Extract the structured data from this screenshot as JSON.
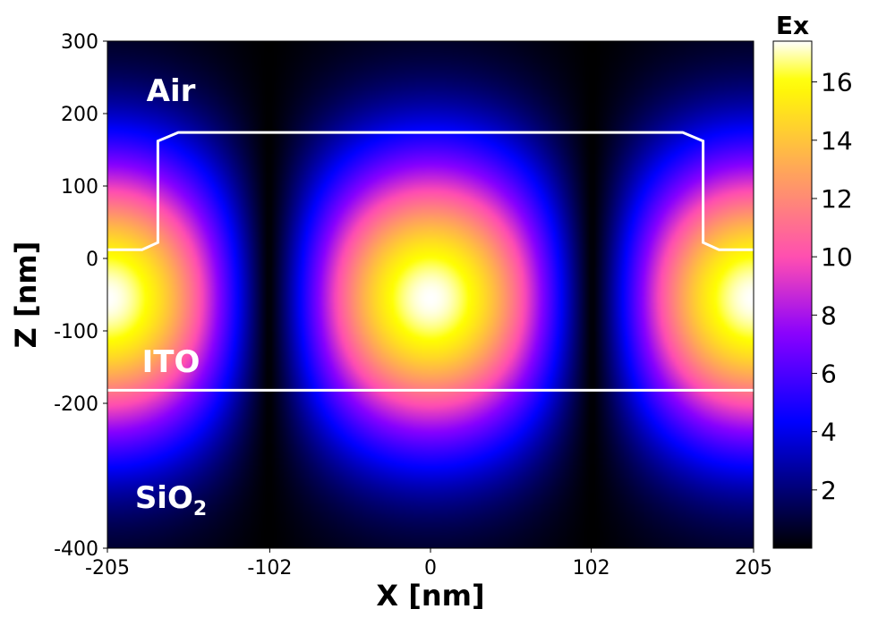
{
  "chart_data": {
    "type": "heatmap",
    "title": "",
    "xlabel": "X [nm]",
    "ylabel": "Z [nm]",
    "xlim": [
      -205,
      205
    ],
    "ylim": [
      -400,
      300
    ],
    "x_ticks": [
      "-205",
      "-102",
      "0",
      "102",
      "205"
    ],
    "x_tick_values": [
      -205,
      -102,
      0,
      102,
      205
    ],
    "y_ticks": [
      "300",
      "200",
      "100",
      "0",
      "-100",
      "-200",
      "-400"
    ],
    "y_tick_values": [
      300,
      200,
      100,
      0,
      -100,
      -200,
      -400
    ],
    "colormap": "gnuplot2",
    "colorbar": {
      "label": "Ex",
      "ticks": [
        "2",
        "4",
        "6",
        "8",
        "10",
        "12",
        "14",
        "16"
      ],
      "tick_values": [
        2,
        4,
        6,
        8,
        10,
        12,
        14,
        16
      ],
      "range": [
        0,
        17.4
      ]
    },
    "field_maxima": [
      {
        "x": 0,
        "z": -55,
        "value": 17.4
      },
      {
        "x": -205,
        "z": -55,
        "value": 17.4
      },
      {
        "x": 205,
        "z": -55,
        "value": 17.4
      }
    ],
    "field_minima": [
      {
        "x": -102,
        "z": -400,
        "value": 0
      },
      {
        "x": 102,
        "z": -400,
        "value": 0
      },
      {
        "x": 0,
        "z": 300,
        "value": 0
      }
    ],
    "structure_outline": [
      [
        -205,
        12
      ],
      [
        -183,
        12
      ],
      [
        -173,
        22
      ],
      [
        -173,
        162
      ],
      [
        -160,
        174
      ],
      [
        160,
        174
      ],
      [
        173,
        162
      ],
      [
        173,
        22
      ],
      [
        183,
        12
      ],
      [
        205,
        12
      ]
    ],
    "interface_line_z": -182,
    "region_labels": [
      {
        "text": "Air",
        "sub": ""
      },
      {
        "text": "ITO",
        "sub": ""
      },
      {
        "text": "SiO",
        "sub": "2"
      }
    ]
  }
}
